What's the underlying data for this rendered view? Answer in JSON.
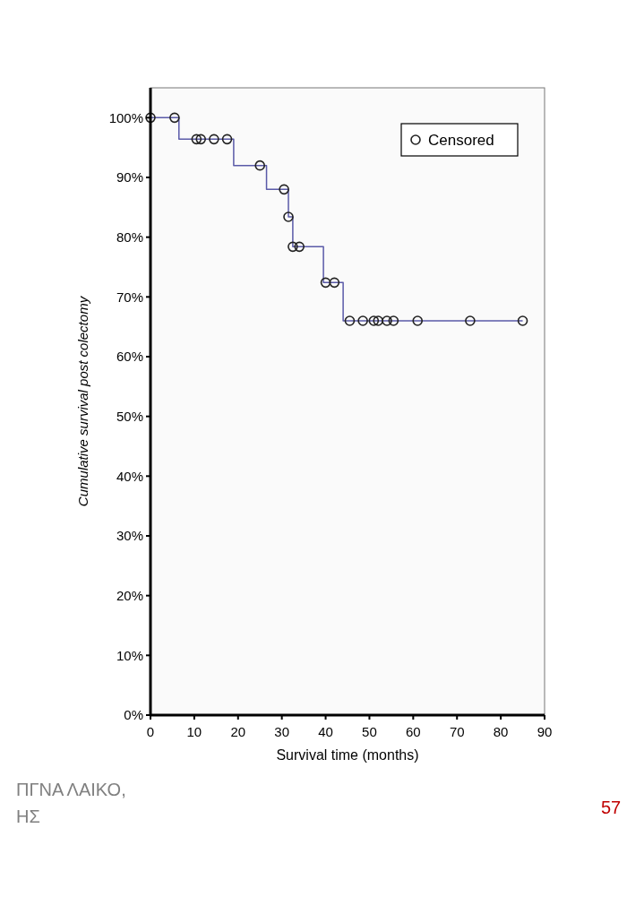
{
  "chart_data": {
    "type": "step",
    "xlabel": "Survival time (months)",
    "ylabel": "Cumulative survival post colectomy",
    "xlim": [
      0,
      90
    ],
    "xticks": [
      0,
      10,
      20,
      30,
      40,
      50,
      60,
      70,
      80,
      90
    ],
    "ylim": [
      0,
      105
    ],
    "yticks": [
      {
        "value": 0,
        "label": "0%"
      },
      {
        "value": 10,
        "label": "10%"
      },
      {
        "value": 20,
        "label": "20%"
      },
      {
        "value": 30,
        "label": "30%"
      },
      {
        "value": 40,
        "label": "40%"
      },
      {
        "value": 50,
        "label": "50%"
      },
      {
        "value": 60,
        "label": "60%"
      },
      {
        "value": 70,
        "label": "70%"
      },
      {
        "value": 80,
        "label": "80%"
      },
      {
        "value": 90,
        "label": "90%"
      },
      {
        "value": 100,
        "label": "100%"
      }
    ],
    "legend": "top right",
    "grid": false,
    "series": [
      {
        "color": "#5a5aa8",
        "x": [
          0,
          6.5,
          19,
          26.5,
          31.5,
          32.5,
          39.5,
          44,
          85
        ],
        "values": [
          100,
          96.4,
          92,
          88,
          83.4,
          78.4,
          72.4,
          66,
          66
        ]
      },
      {
        "type": "scatter",
        "name": "Censored",
        "color": "#222222",
        "marker": "circle",
        "x": [
          0,
          5.5,
          10.5,
          11.5,
          14.5,
          17.5,
          25,
          30.5,
          31.5,
          32.5,
          34,
          40,
          42,
          45.5,
          48.5,
          51,
          52,
          54,
          55.5,
          61,
          73,
          85
        ],
        "values": [
          100,
          100,
          96.4,
          96.4,
          96.4,
          96.4,
          92,
          88,
          83.4,
          78.4,
          78.4,
          72.4,
          72.4,
          66,
          66,
          66,
          66,
          66,
          66,
          66,
          66,
          66
        ]
      }
    ],
    "annotations": [
      "ΠΓΝΑ ΛΑΙΚΟ,",
      "ΗΣ",
      "57"
    ]
  }
}
